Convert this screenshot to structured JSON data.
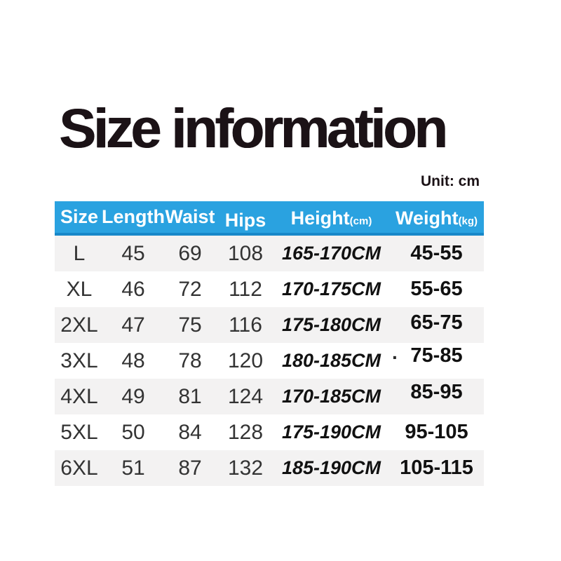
{
  "page": {
    "title": "Size information",
    "unit_label": "Unit: cm"
  },
  "table": {
    "columns": [
      {
        "label": "Size",
        "sub": ""
      },
      {
        "label": "Length",
        "sub": ""
      },
      {
        "label": "Waist",
        "sub": ""
      },
      {
        "label": "Hips",
        "sub": ""
      },
      {
        "label": "Height",
        "sub": "(cm)"
      },
      {
        "label": "Weight",
        "sub": "(kg)"
      }
    ],
    "rows": [
      {
        "size": "L",
        "length": "45",
        "waist": "69",
        "hips": "108",
        "height": "165-170CM",
        "weight": "45-55"
      },
      {
        "size": "XL",
        "length": "46",
        "waist": "72",
        "hips": "112",
        "height": "170-175CM",
        "weight": "55-65"
      },
      {
        "size": "2XL",
        "length": "47",
        "waist": "75",
        "hips": "116",
        "height": "175-180CM",
        "weight": "65-75"
      },
      {
        "size": "3XL",
        "length": "48",
        "waist": "78",
        "hips": "120",
        "height": "180-185CM",
        "weight": "75-85"
      },
      {
        "size": "4XL",
        "length": "49",
        "waist": "81",
        "hips": "124",
        "height": "170-185CM",
        "weight": "85-95"
      },
      {
        "size": "5XL",
        "length": "50",
        "waist": "84",
        "hips": "128",
        "height": "175-190CM",
        "weight": "95-105"
      },
      {
        "size": "6XL",
        "length": "51",
        "waist": "87",
        "hips": "132",
        "height": "185-190CM",
        "weight": "105-115"
      }
    ],
    "stray_mark": "."
  },
  "colors": {
    "header_bg": "#2aa2e0",
    "header_border": "#1888c9",
    "header_text": "#ffffff",
    "row_alt_bg": "#f3f2f2",
    "title_color": "#1b1216",
    "cell_text": "#333333",
    "bold_cell_text": "#111111"
  }
}
